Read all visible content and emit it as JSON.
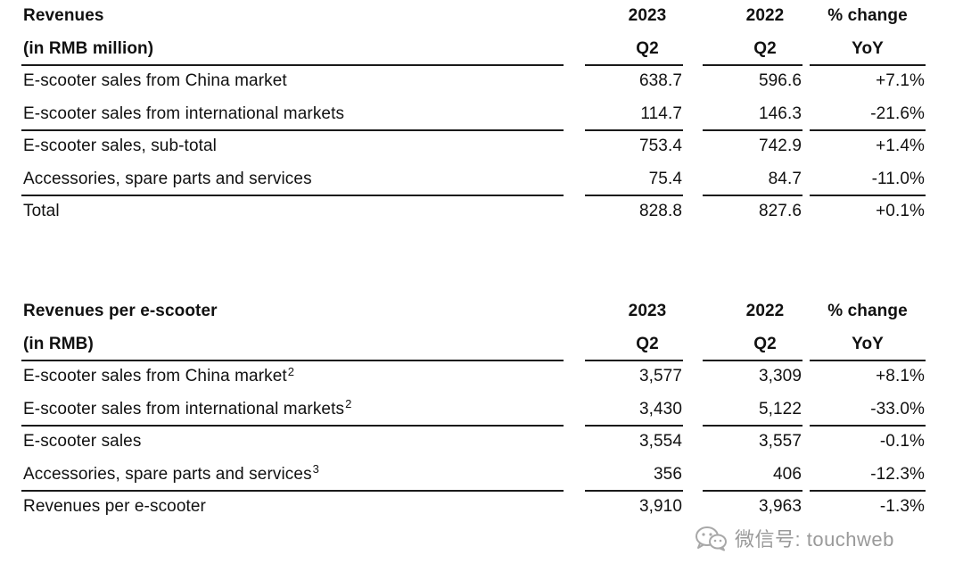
{
  "revenues": {
    "title": "Revenues",
    "unit": "(in RMB million)",
    "header": {
      "col_2023": "2023",
      "col_2022": "2022",
      "col_change": "% change",
      "sub_2023": "Q2",
      "sub_2022": "Q2",
      "sub_change": "YoY"
    },
    "rows": [
      {
        "label": "E-scooter sales from China market",
        "v2023": "638.7",
        "v2022": "596.6",
        "change": "+7.1%"
      },
      {
        "label": "E-scooter sales from international markets",
        "v2023": "114.7",
        "v2022": "146.3",
        "change": "-21.6%"
      },
      {
        "label": "E-scooter sales, sub-total",
        "v2023": "753.4",
        "v2022": "742.9",
        "change": "+1.4%"
      },
      {
        "label": "Accessories, spare parts and services",
        "v2023": "75.4",
        "v2022": "84.7",
        "change": "-11.0%"
      },
      {
        "label": "Total",
        "v2023": "828.8",
        "v2022": "827.6",
        "change": "+0.1%"
      }
    ]
  },
  "per_scooter": {
    "title": "Revenues per e-scooter",
    "unit": "(in RMB)",
    "header": {
      "col_2023": "2023",
      "col_2022": "2022",
      "col_change": "% change",
      "sub_2023": "Q2",
      "sub_2022": "Q2",
      "sub_change": "YoY"
    },
    "rows": [
      {
        "label": "E-scooter sales from China market",
        "sup": "2",
        "v2023": "3,577",
        "v2022": "3,309",
        "change": "+8.1%"
      },
      {
        "label": "E-scooter sales from international markets",
        "sup": "2",
        "v2023": "3,430",
        "v2022": "5,122",
        "change": "-33.0%"
      },
      {
        "label": "E-scooter sales",
        "v2023": "3,554",
        "v2022": "3,557",
        "change": "-0.1%"
      },
      {
        "label": "Accessories, spare parts and services",
        "sup": "3",
        "v2023": "356",
        "v2022": "406",
        "change": "-12.3%"
      },
      {
        "label": "Revenues per e-scooter",
        "v2023": "3,910",
        "v2022": "3,963",
        "change": "-1.3%"
      }
    ]
  },
  "watermark": {
    "text": "微信号: touchweb",
    "icon": "wechat-icon"
  }
}
